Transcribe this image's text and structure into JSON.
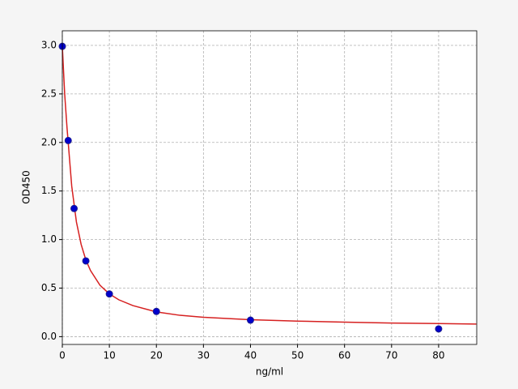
{
  "chart_data": {
    "type": "scatter",
    "x_label": "ng/ml",
    "y_label": "OD450",
    "xlim": [
      0,
      88.1
    ],
    "ylim": [
      -0.08,
      3.15
    ],
    "xticks": [
      0,
      10,
      20,
      30,
      40,
      50,
      60,
      70,
      80
    ],
    "yticks": [
      {
        "value": 0,
        "label": "0.0"
      },
      0.5,
      {
        "value": 1,
        "label": "1.0"
      },
      1.5,
      {
        "value": 2,
        "label": "2.0"
      },
      2.5,
      {
        "value": 3,
        "label": "3.0"
      }
    ],
    "grid": true,
    "series": [
      {
        "type": "line",
        "color": "#d62020",
        "x": [
          0,
          0.5,
          1,
          2,
          3,
          4,
          5,
          6,
          8,
          10,
          12,
          15,
          20,
          25,
          30,
          40,
          50,
          60,
          70,
          80,
          88
        ],
        "values": [
          2.99,
          2.5,
          2.15,
          1.55,
          1.18,
          0.95,
          0.79,
          0.68,
          0.53,
          0.44,
          0.38,
          0.32,
          0.255,
          0.22,
          0.2,
          0.175,
          0.16,
          0.15,
          0.14,
          0.135,
          0.13
        ]
      },
      {
        "type": "scatter",
        "color": "#0000cc",
        "x": [
          0,
          1.25,
          2.5,
          5,
          10,
          20,
          40,
          80
        ],
        "values": [
          2.99,
          2.02,
          1.32,
          0.78,
          0.44,
          0.26,
          0.17,
          0.08
        ]
      }
    ]
  }
}
